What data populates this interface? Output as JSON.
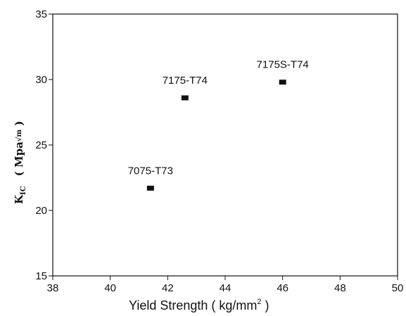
{
  "chart_data": {
    "type": "scatter",
    "xlabel_main": "Yield Strength ( kg/mm",
    "xlabel_sup": "2",
    "xlabel_end": " )",
    "ylabel_k": "K",
    "ylabel_sub": "IC",
    "ylabel_unit": "( Mpa",
    "ylabel_root": "√m",
    "ylabel_end": " )",
    "xlim": [
      38,
      50
    ],
    "ylim": [
      15,
      35
    ],
    "xticks": [
      38,
      40,
      42,
      44,
      46,
      48,
      50
    ],
    "yticks": [
      15,
      20,
      25,
      30,
      35
    ],
    "grid": false,
    "points": [
      {
        "label": "7075-T73",
        "x": 41.4,
        "y": 21.7
      },
      {
        "label": "7175-T74",
        "x": 42.6,
        "y": 28.6
      },
      {
        "label": "7175S-T74",
        "x": 46.0,
        "y": 29.8
      }
    ]
  }
}
